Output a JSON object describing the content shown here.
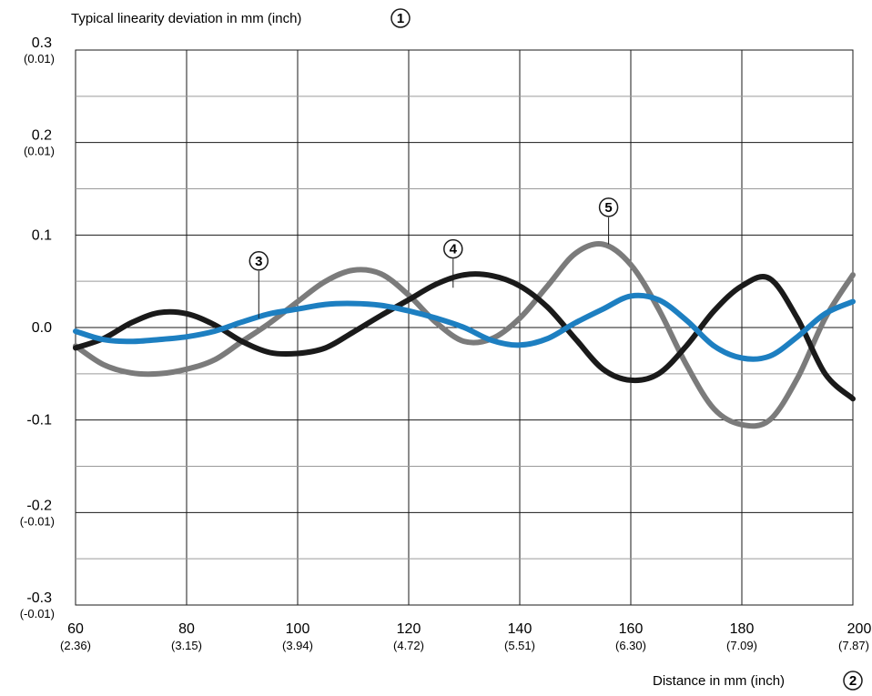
{
  "chart_data": {
    "type": "line",
    "ytitle": "Typical linearity deviation in mm (inch)",
    "ytitle_marker": "1",
    "xtitle": "Distance in mm (inch)",
    "xtitle_marker": "2",
    "xlim": [
      60,
      200
    ],
    "ylim": [
      -0.3,
      0.3
    ],
    "grid": true,
    "x_ticks": [
      {
        "value": 60,
        "label": "60",
        "sub": "(2.36)"
      },
      {
        "value": 80,
        "label": "80",
        "sub": "(3.15)"
      },
      {
        "value": 100,
        "label": "100",
        "sub": "(3.94)"
      },
      {
        "value": 120,
        "label": "120",
        "sub": "(4.72)"
      },
      {
        "value": 140,
        "label": "140",
        "sub": "(5.51)"
      },
      {
        "value": 160,
        "label": "160",
        "sub": "(6.30)"
      },
      {
        "value": 180,
        "label": "180",
        "sub": "(7.09)"
      },
      {
        "value": 200,
        "label": "200",
        "sub": "(7.87)"
      }
    ],
    "y_ticks": [
      {
        "value": 0.3,
        "label": "0.3",
        "sub": "(0.01)"
      },
      {
        "value": 0.2,
        "label": "0.2",
        "sub": "(0.01)"
      },
      {
        "value": 0.1,
        "label": "0.1",
        "sub": ""
      },
      {
        "value": 0.0,
        "label": "0.0",
        "sub": ""
      },
      {
        "value": -0.1,
        "label": "-0.1",
        "sub": ""
      },
      {
        "value": -0.2,
        "label": "-0.2",
        "sub": "(-0.01)"
      },
      {
        "value": -0.3,
        "label": "-0.3",
        "sub": "(-0.01)"
      }
    ],
    "series": [
      {
        "name": "3",
        "color": "#1a1a1a",
        "x": [
          60,
          65,
          70,
          75,
          80,
          85,
          90,
          95,
          100,
          105,
          110,
          115,
          120,
          125,
          130,
          135,
          140,
          145,
          150,
          155,
          160,
          165,
          170,
          175,
          180,
          185,
          190,
          195,
          200
        ],
        "y": [
          -0.022,
          -0.012,
          0.005,
          0.016,
          0.015,
          0.003,
          -0.015,
          -0.027,
          -0.028,
          -0.022,
          -0.005,
          0.013,
          0.03,
          0.047,
          0.057,
          0.056,
          0.045,
          0.022,
          -0.012,
          -0.045,
          -0.057,
          -0.05,
          -0.02,
          0.018,
          0.045,
          0.053,
          0.01,
          -0.05,
          -0.077
        ]
      },
      {
        "name": "4",
        "color": "#1d7fc1",
        "x": [
          60,
          65,
          70,
          75,
          80,
          85,
          90,
          95,
          100,
          105,
          110,
          115,
          120,
          125,
          130,
          135,
          140,
          145,
          150,
          155,
          160,
          165,
          170,
          175,
          180,
          185,
          190,
          195,
          200
        ],
        "y": [
          -0.004,
          -0.013,
          -0.015,
          -0.013,
          -0.01,
          -0.004,
          0.006,
          0.015,
          0.02,
          0.025,
          0.026,
          0.024,
          0.018,
          0.01,
          0.0,
          -0.014,
          -0.019,
          -0.012,
          0.005,
          0.02,
          0.034,
          0.03,
          0.008,
          -0.02,
          -0.033,
          -0.031,
          -0.01,
          0.015,
          0.028
        ]
      },
      {
        "name": "5",
        "color": "#7b7b7b",
        "x": [
          60,
          65,
          70,
          75,
          80,
          85,
          90,
          95,
          100,
          105,
          110,
          115,
          120,
          125,
          130,
          135,
          140,
          145,
          150,
          155,
          160,
          165,
          170,
          175,
          180,
          185,
          190,
          195,
          200
        ],
        "y": [
          -0.02,
          -0.04,
          -0.049,
          -0.05,
          -0.045,
          -0.035,
          -0.015,
          0.005,
          0.028,
          0.05,
          0.062,
          0.058,
          0.035,
          0.005,
          -0.015,
          -0.012,
          0.01,
          0.045,
          0.08,
          0.09,
          0.068,
          0.02,
          -0.04,
          -0.088,
          -0.105,
          -0.1,
          -0.055,
          0.01,
          0.057
        ]
      }
    ],
    "annotations": [
      {
        "label": "3",
        "series": "3",
        "x": 93,
        "y": 0.01,
        "label_y": 0.072
      },
      {
        "label": "4",
        "series": "4",
        "x": 128,
        "y": 0.043,
        "label_y": 0.085
      },
      {
        "label": "5",
        "series": "5",
        "x": 156,
        "y": 0.09,
        "label_y": 0.13
      }
    ]
  }
}
